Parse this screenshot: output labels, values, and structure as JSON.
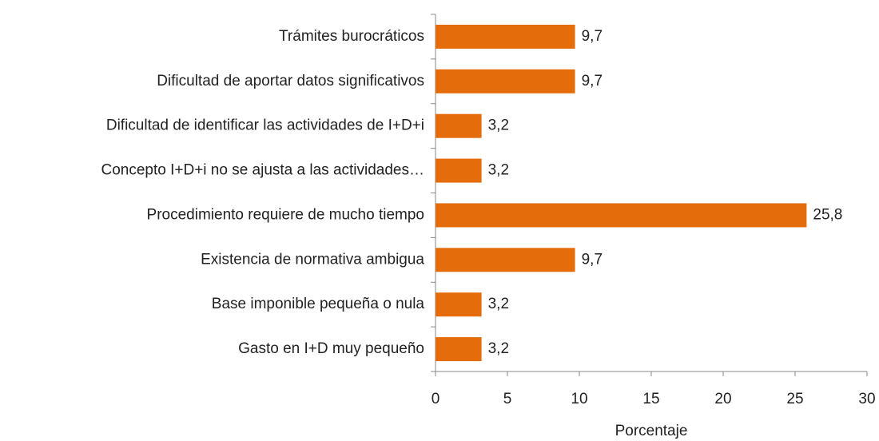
{
  "chart_data": {
    "type": "hbar",
    "categories": [
      "Trámites burocráticos",
      "Dificultad de aportar datos significativos",
      "Dificultad de identificar las actividades de I+D+i",
      "Concepto I+D+i no se ajusta a las actividades…",
      "Procedimiento requiere de mucho tiempo",
      "Existencia de normativa ambigua",
      "Base imponible pequeña o nula",
      "Gasto en I+D muy pequeño"
    ],
    "values": [
      9.7,
      9.7,
      3.2,
      3.2,
      25.8,
      9.7,
      3.2,
      3.2
    ],
    "value_labels": [
      "9,7",
      "9,7",
      "3,2",
      "3,2",
      "25,8",
      "9,7",
      "3,2",
      "3,2"
    ],
    "color": "#e46c0a",
    "xlabel": "Porcentaje",
    "xlim": [
      0,
      30
    ],
    "xticks": [
      0,
      5,
      10,
      15,
      20,
      25,
      30
    ],
    "grid": false
  }
}
